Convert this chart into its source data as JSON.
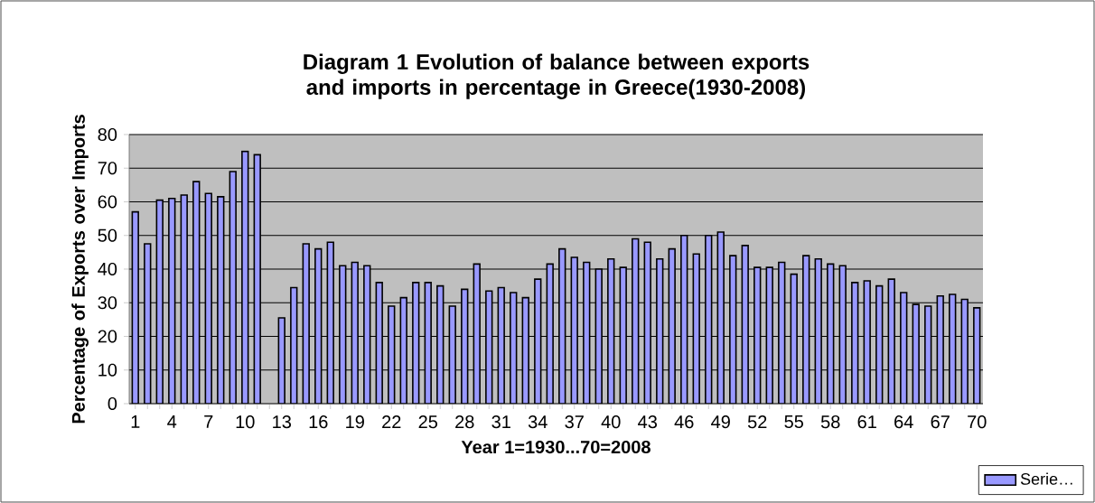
{
  "chart_data": {
    "type": "bar",
    "title": "Diagram 1 Evolution of balance between exports and imports in percentage in Greece(1930-2008)",
    "xlabel": "Year 1=1930...70=2008",
    "ylabel": "Percentage of Exports over Imports",
    "categories": [
      "1",
      null,
      null,
      "4",
      null,
      null,
      "7",
      null,
      null,
      "10",
      null,
      null,
      "13",
      null,
      null,
      "16",
      null,
      null,
      "19",
      null,
      null,
      "22",
      null,
      null,
      "25",
      null,
      null,
      "28",
      null,
      null,
      "31",
      null,
      null,
      "34",
      null,
      null,
      "37",
      null,
      null,
      "40",
      null,
      null,
      "43",
      null,
      null,
      "46",
      null,
      null,
      "49",
      null,
      null,
      "52",
      null,
      null,
      "55",
      null,
      null,
      "58",
      null,
      null,
      "61",
      null,
      null,
      "64",
      null,
      null,
      "67",
      null,
      null,
      "70"
    ],
    "series": [
      {
        "name": "Serie…",
        "color": "#9999ff",
        "values": [
          57,
          47.5,
          60.5,
          61,
          62,
          66,
          62.5,
          61.5,
          69,
          75,
          74,
          null,
          25.5,
          34.5,
          47.5,
          46,
          48,
          41,
          42,
          41,
          36,
          29,
          31.5,
          36,
          36,
          35,
          29,
          34,
          41.5,
          33.5,
          34.5,
          33,
          31.5,
          37,
          41.5,
          46,
          43.5,
          42,
          40,
          43,
          40.5,
          49,
          48,
          43,
          46,
          50,
          44.5,
          50,
          51,
          44,
          47,
          40.5,
          40.5,
          42,
          38.5,
          44,
          43,
          41.5,
          41,
          36,
          36.5,
          35,
          37,
          33,
          29.5,
          29,
          32,
          32.5,
          31,
          28.5
        ]
      }
    ],
    "ylim": [
      0,
      80
    ],
    "yticks": [
      0,
      10,
      20,
      30,
      40,
      50,
      60,
      70,
      80
    ],
    "grid": "y",
    "legend": "bottom right"
  }
}
